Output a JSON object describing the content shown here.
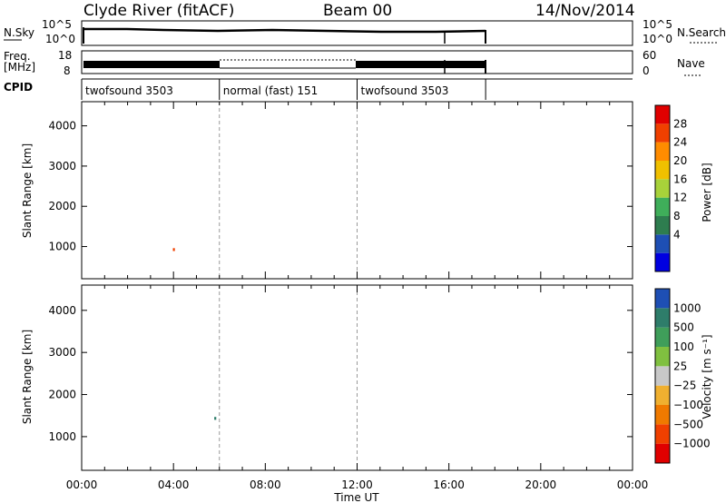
{
  "header": {
    "station": "Clyde River (fitACF)",
    "beam": "Beam 00",
    "date": "14/Nov/2014"
  },
  "panels": {
    "nsky_label": "N.Sky",
    "nsky_ticks": [
      "10^5",
      "10^0"
    ],
    "nsearch_label": "N.Search",
    "freq_label_1": "Freq.",
    "freq_label_2": "[MHz]",
    "freq_ticks": [
      "18",
      "8"
    ],
    "nave_ticks": [
      "60",
      "0"
    ],
    "nave_label": "Nave",
    "cpid_label": "CPID",
    "cpid_segments": [
      {
        "label": "twofsound 3503",
        "start_hr": 0,
        "end_hr": 6
      },
      {
        "label": "normal (fast) 151",
        "start_hr": 6,
        "end_hr": 12
      },
      {
        "label": "twofsound 3503",
        "start_hr": 12,
        "end_hr": 17.6
      }
    ]
  },
  "chart_data": [
    {
      "type": "heatmap",
      "title": "Power",
      "xlabel": "",
      "ylabel": "Slant Range [km]",
      "x_ticks": [
        "00:00",
        "04:00",
        "08:00",
        "12:00",
        "16:00",
        "20:00",
        "00:00"
      ],
      "xlim": [
        0,
        24
      ],
      "ylim": [
        200,
        4600
      ],
      "y_ticks": [
        1000,
        2000,
        3000,
        4000
      ],
      "colorbar": {
        "label": "Power [dB]",
        "ticks": [
          "28",
          "24",
          "20",
          "16",
          "12",
          "8",
          "4"
        ],
        "colors": [
          "#0000e0",
          "#1e4fb4",
          "#2e7d4f",
          "#3fae5a",
          "#a8d23a",
          "#f0c000",
          "#ff8c00",
          "#f04000",
          "#e00000"
        ]
      },
      "data_extent_hr": [
        0.5,
        17.6
      ]
    },
    {
      "type": "heatmap",
      "title": "Velocity",
      "xlabel": "Time UT",
      "ylabel": "Slant Range [km]",
      "x_ticks": [
        "00:00",
        "04:00",
        "08:00",
        "12:00",
        "16:00",
        "20:00",
        "00:00"
      ],
      "xlim": [
        0,
        24
      ],
      "ylim": [
        200,
        4600
      ],
      "y_ticks": [
        1000,
        2000,
        3000,
        4000
      ],
      "colorbar": {
        "label": "Velocity [m s⁻¹]",
        "ticks": [
          "1000",
          "500",
          "100",
          "25",
          "−25",
          "−100",
          "−500",
          "−1000"
        ],
        "colors": [
          "#e00000",
          "#f04000",
          "#f07a00",
          "#f0b030",
          "#c8c8c8",
          "#80c040",
          "#3f9e5a",
          "#2e7d6a",
          "#1e4fb4"
        ]
      },
      "data_extent_hr": [
        0.5,
        17.6
      ]
    }
  ]
}
